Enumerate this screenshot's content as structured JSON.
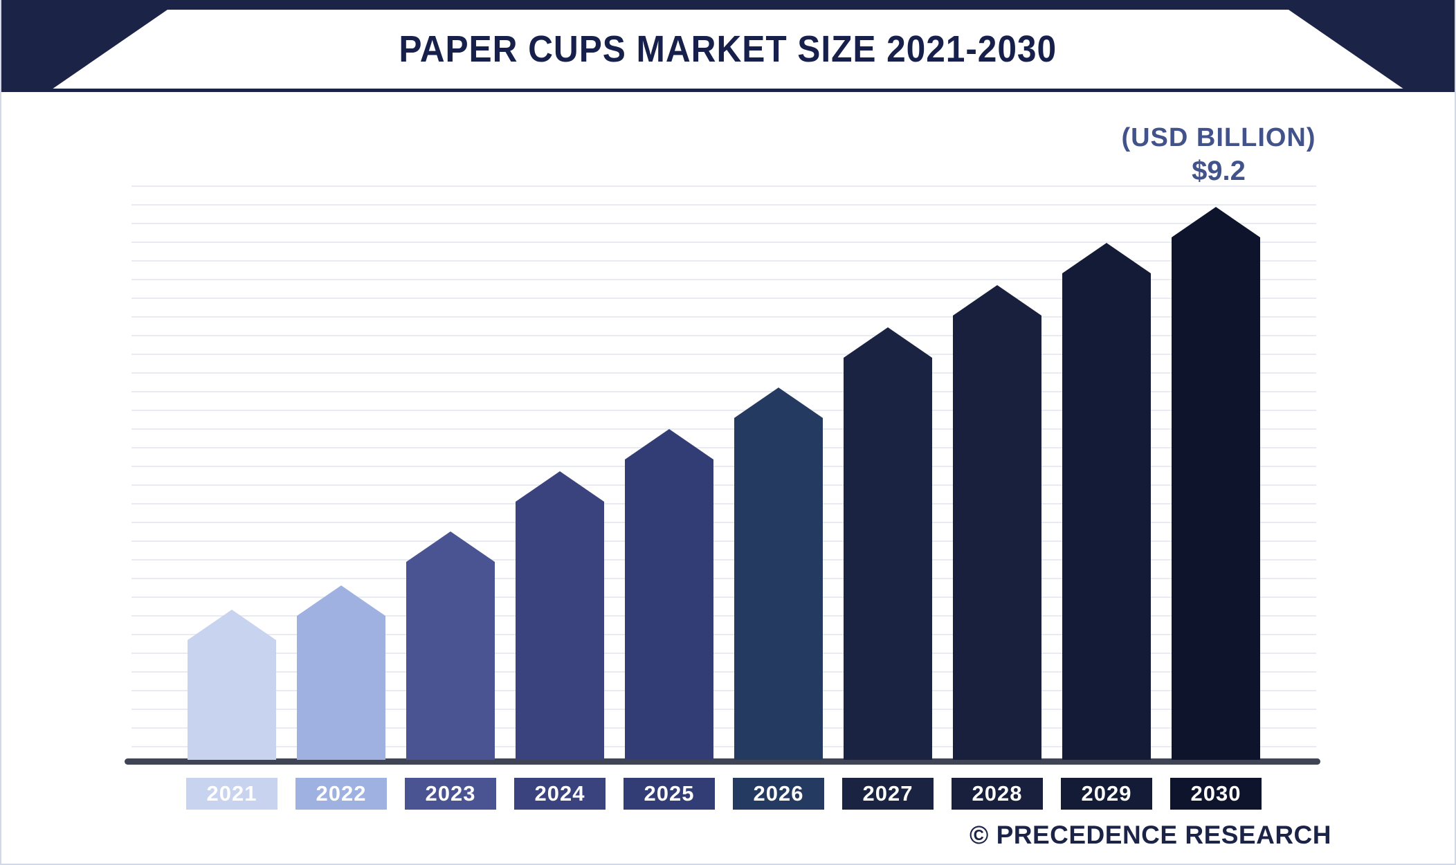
{
  "page": {
    "title": "PAPER CUPS MARKET SIZE 2021-2030",
    "credit": "© PRECEDENCE RESEARCH"
  },
  "annotations": {
    "unit": "(USD BILLION)",
    "final_value": "$9.2"
  },
  "chart_data": {
    "type": "bar",
    "title": "PAPER CUPS MARKET SIZE 2021-2030",
    "unit": "USD Billion",
    "categories": [
      "2021",
      "2022",
      "2023",
      "2024",
      "2025",
      "2026",
      "2027",
      "2028",
      "2029",
      "2030"
    ],
    "values": [
      2.5,
      2.9,
      3.8,
      4.8,
      5.5,
      6.2,
      7.2,
      7.9,
      8.6,
      9.2
    ],
    "labeled_values": {
      "2030": "$9.2"
    },
    "ylim": [
      0,
      9.2
    ],
    "grid": "horizontal",
    "legend": "none",
    "bar_colors": [
      "#c7d3ef",
      "#9fb1e1",
      "#4a5493",
      "#3a437e",
      "#333d75",
      "#253a60",
      "#1a2442",
      "#18203e",
      "#131b36",
      "#0d142c"
    ]
  }
}
